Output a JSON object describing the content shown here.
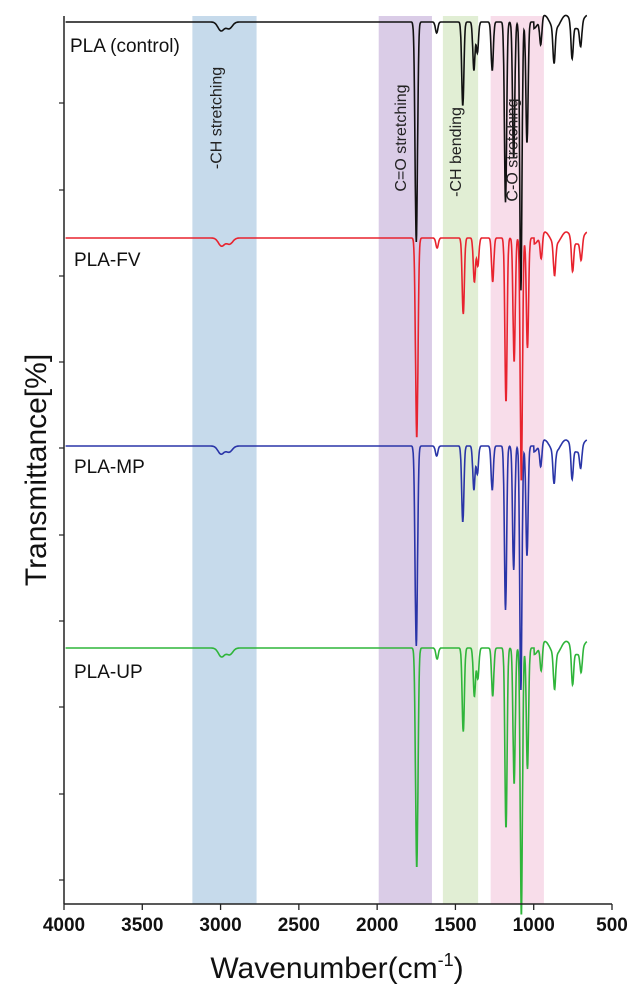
{
  "chart_data": {
    "type": "line",
    "title": "",
    "xlabel": "Wavenumber(cm",
    "xlabel_sup": "-1",
    "xlabel_suffix": ")",
    "ylabel": "Transmittance[%]",
    "xlim": [
      4000,
      500
    ],
    "x_ticks": [
      4000,
      3500,
      3000,
      2500,
      2000,
      1500,
      1000,
      500
    ],
    "y_axis_tick_labels": "none",
    "grid": false,
    "legend": "inline labels at left of each trace",
    "bands": [
      {
        "label": "-CH stretching",
        "from": 3180,
        "to": 2770,
        "color": "#bcd3e8"
      },
      {
        "label": "C=O stretching",
        "from": 1990,
        "to": 1650,
        "color": "#d4c3e3"
      },
      {
        "label": "-CH bending",
        "from": 1580,
        "to": 1355,
        "color": "#dcebcc"
      },
      {
        "label": "C-O stretching",
        "from": 1275,
        "to": 935,
        "color": "#f7d7e6"
      }
    ],
    "peaks": [
      {
        "x": 2997,
        "depth": 0.04
      },
      {
        "x": 2945,
        "depth": 0.03
      },
      {
        "x": 1750,
        "depth": 1.0
      },
      {
        "x": 1620,
        "depth": 0.05
      },
      {
        "x": 1453,
        "depth": 0.38
      },
      {
        "x": 1382,
        "depth": 0.22
      },
      {
        "x": 1360,
        "depth": 0.14
      },
      {
        "x": 1265,
        "depth": 0.22
      },
      {
        "x": 1180,
        "depth": 0.82
      },
      {
        "x": 1128,
        "depth": 0.62
      },
      {
        "x": 1082,
        "depth": 1.22
      },
      {
        "x": 1043,
        "depth": 0.55
      },
      {
        "x": 955,
        "depth": 0.12
      },
      {
        "x": 870,
        "depth": 0.16
      },
      {
        "x": 755,
        "depth": 0.16
      },
      {
        "x": 700,
        "depth": 0.1
      }
    ],
    "series": [
      {
        "name": "PLA (control)",
        "color": "#111111",
        "scale": 1.0
      },
      {
        "name": "PLA-FV",
        "color": "#e8232e",
        "scale": 1.0
      },
      {
        "name": "PLA-MP",
        "color": "#2a35a8",
        "scale": 1.0
      },
      {
        "name": "PLA-UP",
        "color": "#2fb53a",
        "scale": 1.0
      }
    ]
  }
}
